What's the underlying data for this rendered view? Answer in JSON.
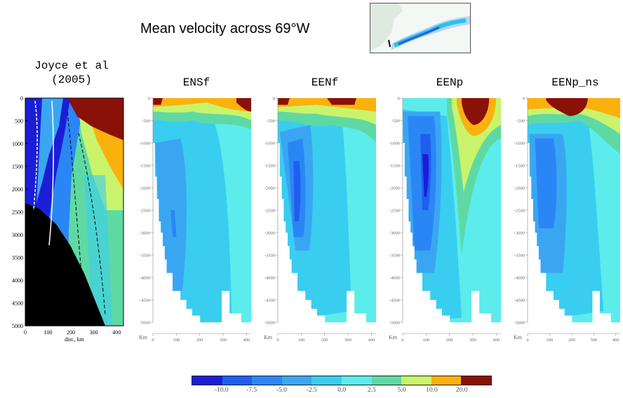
{
  "figure_title": "Mean velocity across 69°W",
  "colorbar": {
    "colors": [
      "#1a1ed6",
      "#1f5ef0",
      "#2b86f5",
      "#3aa6f2",
      "#39cdf0",
      "#5cecec",
      "#5fd9a3",
      "#c9f36b",
      "#fbb10d",
      "#8a1108"
    ],
    "tick_labels": [
      "-10.0",
      "-7.5",
      "-5.0",
      "-2.5",
      "0.0",
      "2.5",
      "5.0",
      "10.0",
      "20.0"
    ]
  },
  "chart_data": [
    {
      "type": "heatmap",
      "title": "Joyce et al\n(2005)",
      "xlabel": "dist., km",
      "ylabel": "",
      "xlim": [
        0,
        430
      ],
      "ylim": [
        5000,
        0
      ],
      "xticks": [
        "0",
        "100",
        "200",
        "300",
        "400"
      ],
      "yticks": [
        "0",
        "500",
        "1000",
        "1500",
        "2000",
        "2500",
        "3000",
        "3500",
        "4000",
        "4500",
        "5000"
      ]
    },
    {
      "type": "heatmap",
      "title": "ENSf",
      "xlabel": "Km",
      "xlim": [
        0,
        420
      ],
      "ylim": [
        -5000,
        0
      ],
      "xticks": [
        "0",
        "100",
        "200",
        "300",
        "400"
      ],
      "yticks": [
        "0",
        "-500",
        "-1000",
        "-1500",
        "-2000",
        "-2500",
        "-3000",
        "-3500",
        "-4000",
        "-4500",
        "-5000"
      ]
    },
    {
      "type": "heatmap",
      "title": "EENf",
      "xlabel": "Km",
      "xlim": [
        0,
        420
      ],
      "ylim": [
        -5000,
        0
      ],
      "xticks": [
        "0",
        "100",
        "200",
        "300",
        "400"
      ],
      "yticks": [
        "0",
        "-500",
        "-1000",
        "-1500",
        "-2000",
        "-2500",
        "-3000",
        "-3500",
        "-4000",
        "-4500",
        "-5000"
      ]
    },
    {
      "type": "heatmap",
      "title": "EENp",
      "xlabel": "Km",
      "xlim": [
        0,
        420
      ],
      "ylim": [
        -5000,
        0
      ],
      "xticks": [
        "0",
        "100",
        "200",
        "300",
        "400"
      ],
      "yticks": [
        "0",
        "-500",
        "-1000",
        "-1500",
        "-2000",
        "-2500",
        "-3000",
        "-3500",
        "-4000",
        "-4500",
        "-5000"
      ]
    },
    {
      "type": "heatmap",
      "title": "EENp_ns",
      "xlabel": "Km",
      "xlim": [
        0,
        420
      ],
      "ylim": [
        -5000,
        0
      ],
      "xticks": [
        "0",
        "100",
        "200",
        "300",
        "400"
      ],
      "yticks": [
        "0",
        "-500",
        "-1000",
        "-1500",
        "-2000",
        "-2500",
        "-3000",
        "-3500",
        "-4000",
        "-4500",
        "-5000"
      ]
    }
  ]
}
